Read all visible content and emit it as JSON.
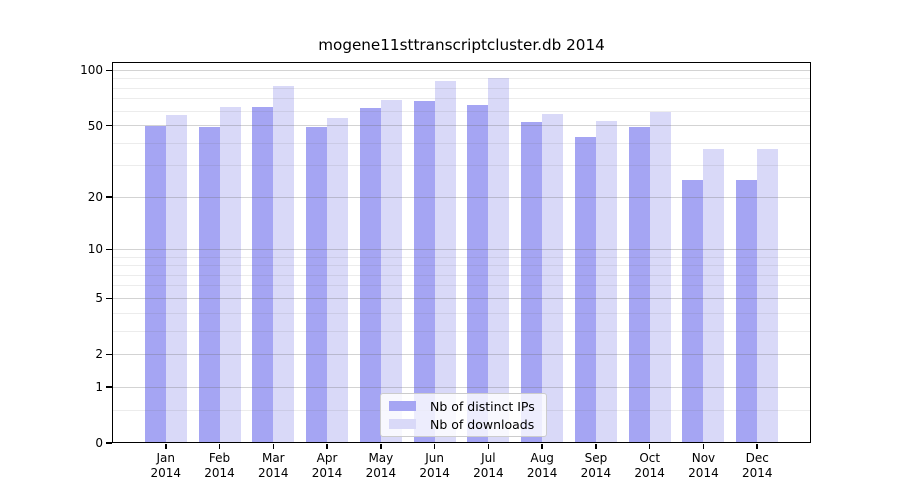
{
  "title": "mogene11sttranscriptcluster.db 2014",
  "chart_data": {
    "type": "bar",
    "title": "mogene11sttranscriptcluster.db 2014",
    "categories": [
      "Jan",
      "Feb",
      "Mar",
      "Apr",
      "May",
      "Jun",
      "Jul",
      "Aug",
      "Sep",
      "Oct",
      "Nov",
      "Dec"
    ],
    "category_year": "2014",
    "series": [
      {
        "name": "Nb of distinct IPs",
        "color": "#a5a5f3",
        "values": [
          50,
          49,
          63,
          49,
          62,
          68,
          65,
          52,
          43,
          49,
          25,
          25
        ]
      },
      {
        "name": "Nb of downloads",
        "color": "#d9d9f8",
        "values": [
          57,
          63,
          82,
          55,
          69,
          88,
          91,
          58,
          53,
          59,
          37,
          37
        ]
      }
    ],
    "yscale": "log1p",
    "ylim": [
      0,
      111
    ],
    "yticks": [
      0,
      1,
      2,
      5,
      10,
      20,
      50,
      100
    ],
    "minor_gridlines": [
      0.5,
      3,
      4,
      6,
      7,
      8,
      9,
      30,
      40,
      60,
      70,
      80,
      90
    ],
    "grid": true,
    "legend_position": "lower center",
    "legend_labels": [
      "Nb of distinct IPs",
      "Nb of downloads"
    ]
  },
  "colors": {
    "bar_distinct_ips": "#a5a5f3",
    "bar_downloads": "#d9d9f8",
    "axis": "#000000",
    "grid_major": "#d7d7d7",
    "grid_minor": "#ececec",
    "legend_border": "#cccccc",
    "background": "#ffffff"
  }
}
